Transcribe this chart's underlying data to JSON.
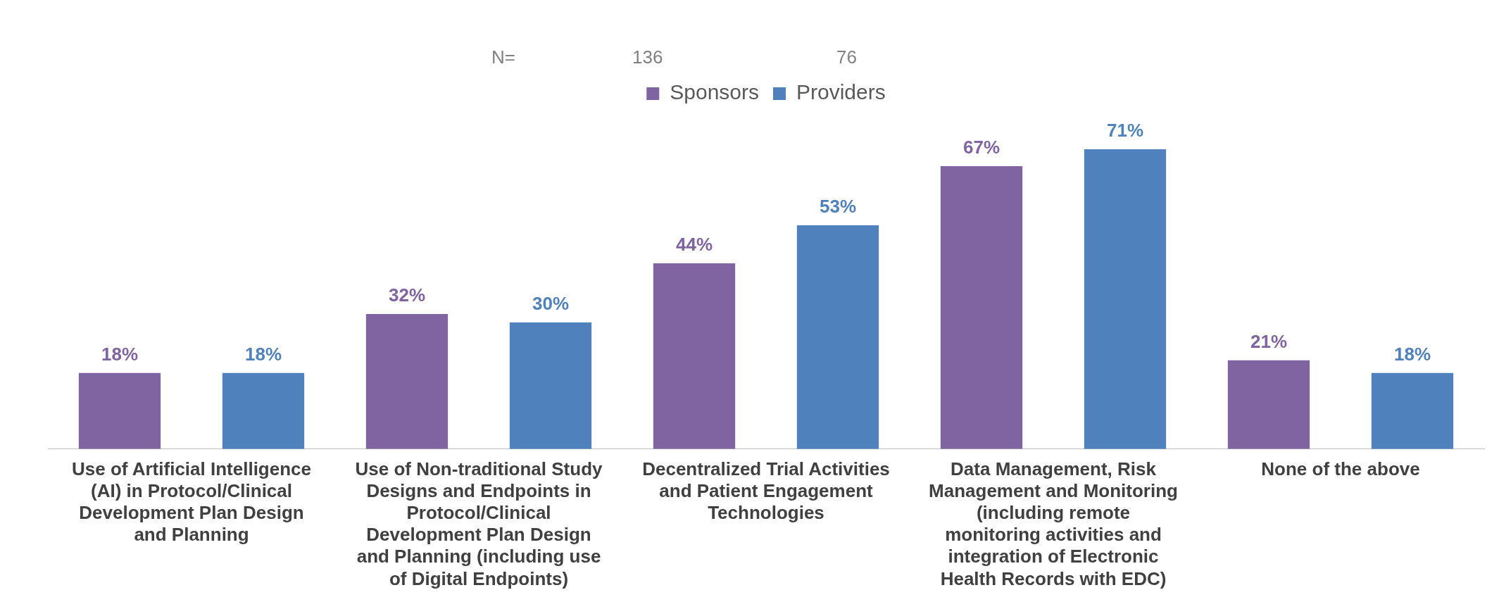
{
  "chart_data": {
    "type": "bar",
    "categories": [
      "Use of Artificial Intelligence (AI) in Protocol/Clinical Development Plan Design and Planning",
      "Use of Non-traditional Study Designs and Endpoints in Protocol/Clinical Development Plan Design and Planning (including use of Digital Endpoints)",
      "Decentralized Trial Activities and Patient Engagement Technologies",
      "Data Management, Risk Management and Monitoring (including remote monitoring activities and integration of Electronic Health Records with EDC)",
      "None of the above"
    ],
    "series": [
      {
        "name": "Sponsors",
        "color": "#8064a2",
        "values": [
          18,
          32,
          44,
          67,
          21
        ],
        "value_labels": [
          "18%",
          "32%",
          "44%",
          "67%",
          "21%"
        ]
      },
      {
        "name": "Providers",
        "color": "#4f81bd",
        "values": [
          18,
          30,
          53,
          71,
          18
        ],
        "value_labels": [
          "18%",
          "30%",
          "53%",
          "71%",
          "18%"
        ]
      }
    ],
    "annotations": [
      "N=",
      "136",
      "76"
    ],
    "legend": "top",
    "grid": false
  }
}
